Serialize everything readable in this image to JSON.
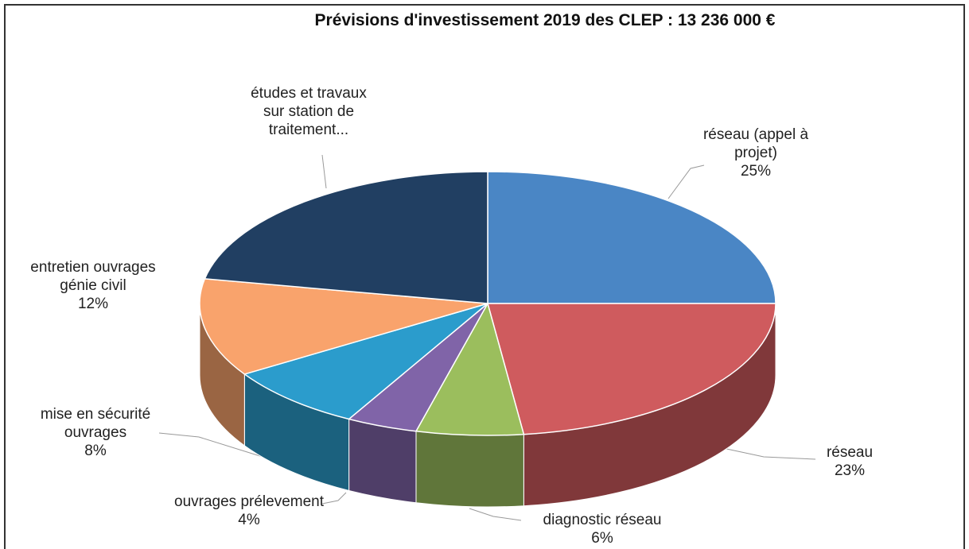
{
  "chart_data": {
    "type": "pie",
    "title": "Prévisions d'investissement 2019 des CLEP : 13 236 000 €",
    "categories": [
      "réseau (appel à\nprojet)",
      "réseau",
      "diagnostic réseau",
      "ouvrages prélevement",
      "mise en sécurité\nouvrages",
      "entretien ouvrages\ngénie civil",
      "études et travaux\nsur station de\ntraitement..."
    ],
    "values": [
      25,
      23,
      6,
      4,
      8,
      12,
      22
    ],
    "value_labels": [
      "25%",
      "23%",
      "6%",
      "4%",
      "8%",
      "12%",
      null
    ],
    "colors": [
      "#4a86c5",
      "#cf5b5e",
      "#9bbe5d",
      "#8064a8",
      "#2b9ccc",
      "#f9a36c",
      "#213f62"
    ]
  }
}
